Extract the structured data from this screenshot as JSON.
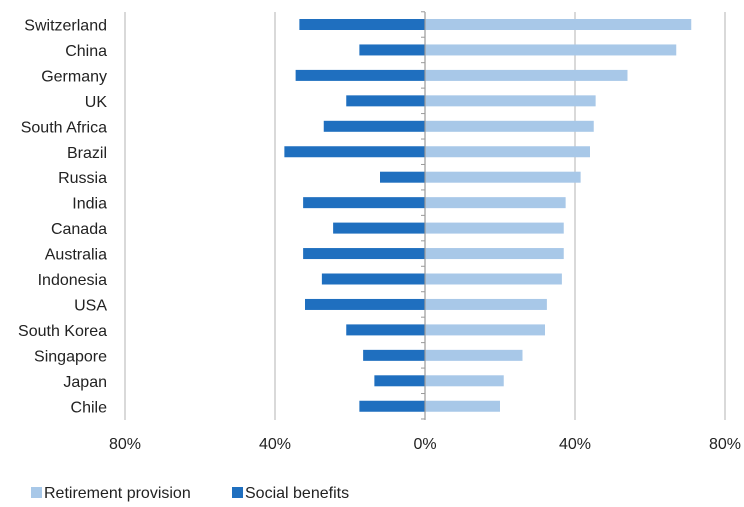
{
  "chart_data": {
    "type": "bar",
    "orientation": "horizontal",
    "layout": "diverging",
    "categories": [
      "Switzerland",
      "China",
      "Germany",
      "UK",
      "South Africa",
      "Brazil",
      "Russia",
      "India",
      "Canada",
      "Australia",
      "Indonesia",
      "USA",
      "South Korea",
      "Singapore",
      "Japan",
      "Chile"
    ],
    "series": [
      {
        "name": "Retirement provision",
        "color": "#a8c8e8",
        "direction": "right",
        "values": [
          71,
          67,
          54,
          45.5,
          45,
          44,
          41.5,
          37.5,
          37,
          37,
          36.5,
          32.5,
          32,
          26,
          21,
          20
        ]
      },
      {
        "name": "Social benefits",
        "color": "#1f6fbf",
        "direction": "left",
        "values": [
          33.5,
          17.5,
          34.5,
          21,
          27,
          37.5,
          12,
          32.5,
          24.5,
          32.5,
          27.5,
          32,
          21,
          16.5,
          13.5,
          17.5
        ]
      }
    ],
    "xlim": [
      -80,
      80
    ],
    "xticks": [
      -80,
      -40,
      0,
      40,
      80
    ],
    "tick_labels": [
      "80%",
      "40%",
      "0%",
      "40%",
      "80%"
    ],
    "grid": "vertical",
    "legend": "bottom-left"
  }
}
